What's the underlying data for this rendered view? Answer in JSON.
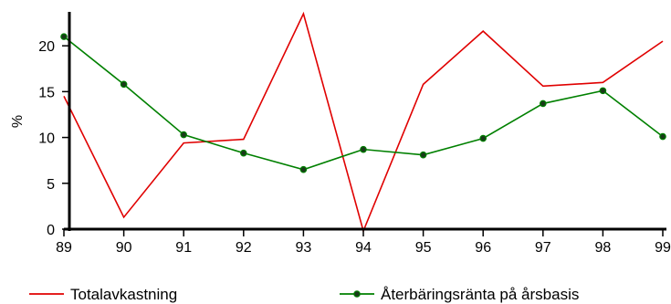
{
  "chart_data": {
    "type": "line",
    "title": "",
    "xlabel": "",
    "ylabel": "%",
    "x": [
      "89",
      "90",
      "91",
      "92",
      "93",
      "94",
      "95",
      "96",
      "97",
      "98",
      "99"
    ],
    "xlim": [
      89,
      99
    ],
    "ylim": [
      0,
      24
    ],
    "yticks": [
      0,
      5,
      10,
      15,
      20
    ],
    "grid": false,
    "legend_position": "bottom",
    "series": [
      {
        "name": "Totalavkastning",
        "color": "#e00000",
        "marker": "none",
        "values": [
          14.5,
          1.3,
          9.4,
          9.8,
          23.5,
          -0.2,
          15.8,
          21.6,
          15.6,
          16.0,
          20.5
        ]
      },
      {
        "name": "Återbäringsränta på årsbasis",
        "color": "#008000",
        "marker": "circle",
        "values": [
          21.0,
          15.8,
          10.3,
          8.3,
          6.5,
          8.7,
          8.1,
          9.9,
          13.7,
          15.1,
          10.1
        ]
      }
    ]
  }
}
